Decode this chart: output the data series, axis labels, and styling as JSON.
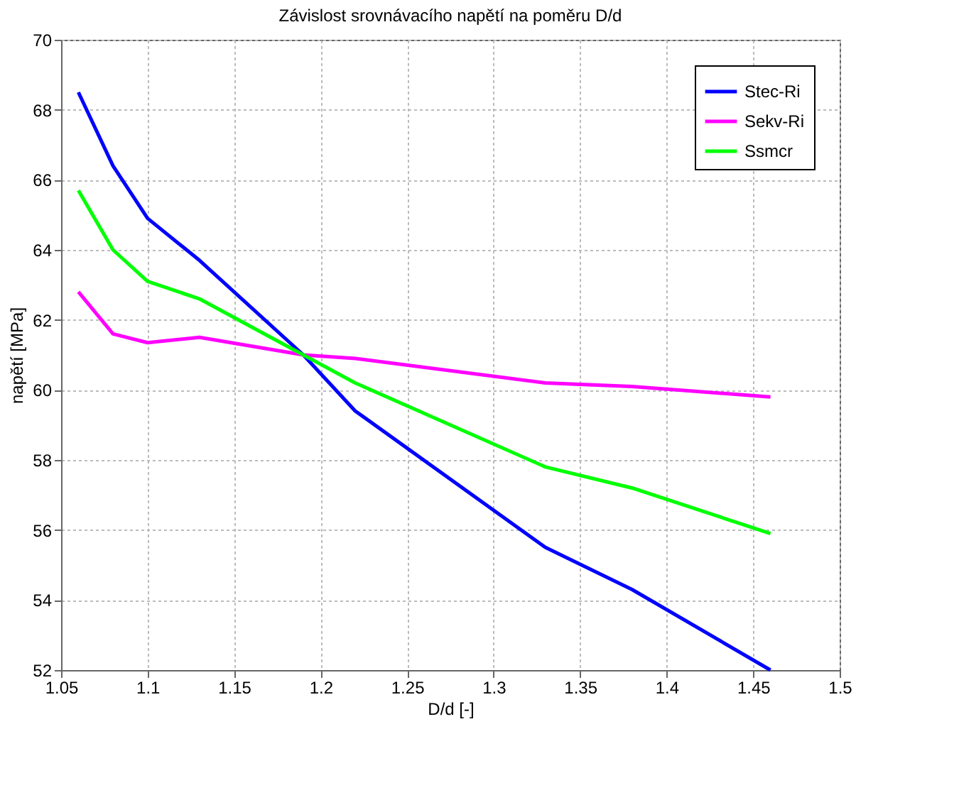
{
  "chart_data": {
    "type": "line",
    "title": "Závislost srovnávacího napětí na poměru D/d",
    "xlabel": "D/d [-]",
    "ylabel": "napětí [MPa]",
    "x": [
      1.06,
      1.08,
      1.1,
      1.13,
      1.19,
      1.22,
      1.33,
      1.38,
      1.46
    ],
    "series": [
      {
        "name": "Stec-Ri",
        "color": "#0000ff",
        "values": [
          68.5,
          66.4,
          64.9,
          63.7,
          61.0,
          59.4,
          55.5,
          54.3,
          52.0
        ]
      },
      {
        "name": "Sekv-Ri",
        "color": "#ff00ff",
        "values": [
          62.8,
          61.6,
          61.35,
          61.5,
          61.0,
          60.9,
          60.2,
          60.1,
          59.8
        ]
      },
      {
        "name": "Ssmcr",
        "color": "#00ff00",
        "values": [
          65.7,
          64.0,
          63.1,
          62.6,
          61.0,
          60.2,
          57.8,
          57.2,
          55.9
        ]
      }
    ],
    "xlim": [
      1.05,
      1.5
    ],
    "xticks": [
      1.05,
      1.1,
      1.15,
      1.2,
      1.25,
      1.3,
      1.35,
      1.4,
      1.45,
      1.5
    ],
    "ylim": [
      52,
      70
    ],
    "yticks": [
      52,
      54,
      56,
      58,
      60,
      62,
      64,
      66,
      68,
      70
    ],
    "grid": true,
    "legend": "top right",
    "marker": "none",
    "line_style": "solid"
  }
}
